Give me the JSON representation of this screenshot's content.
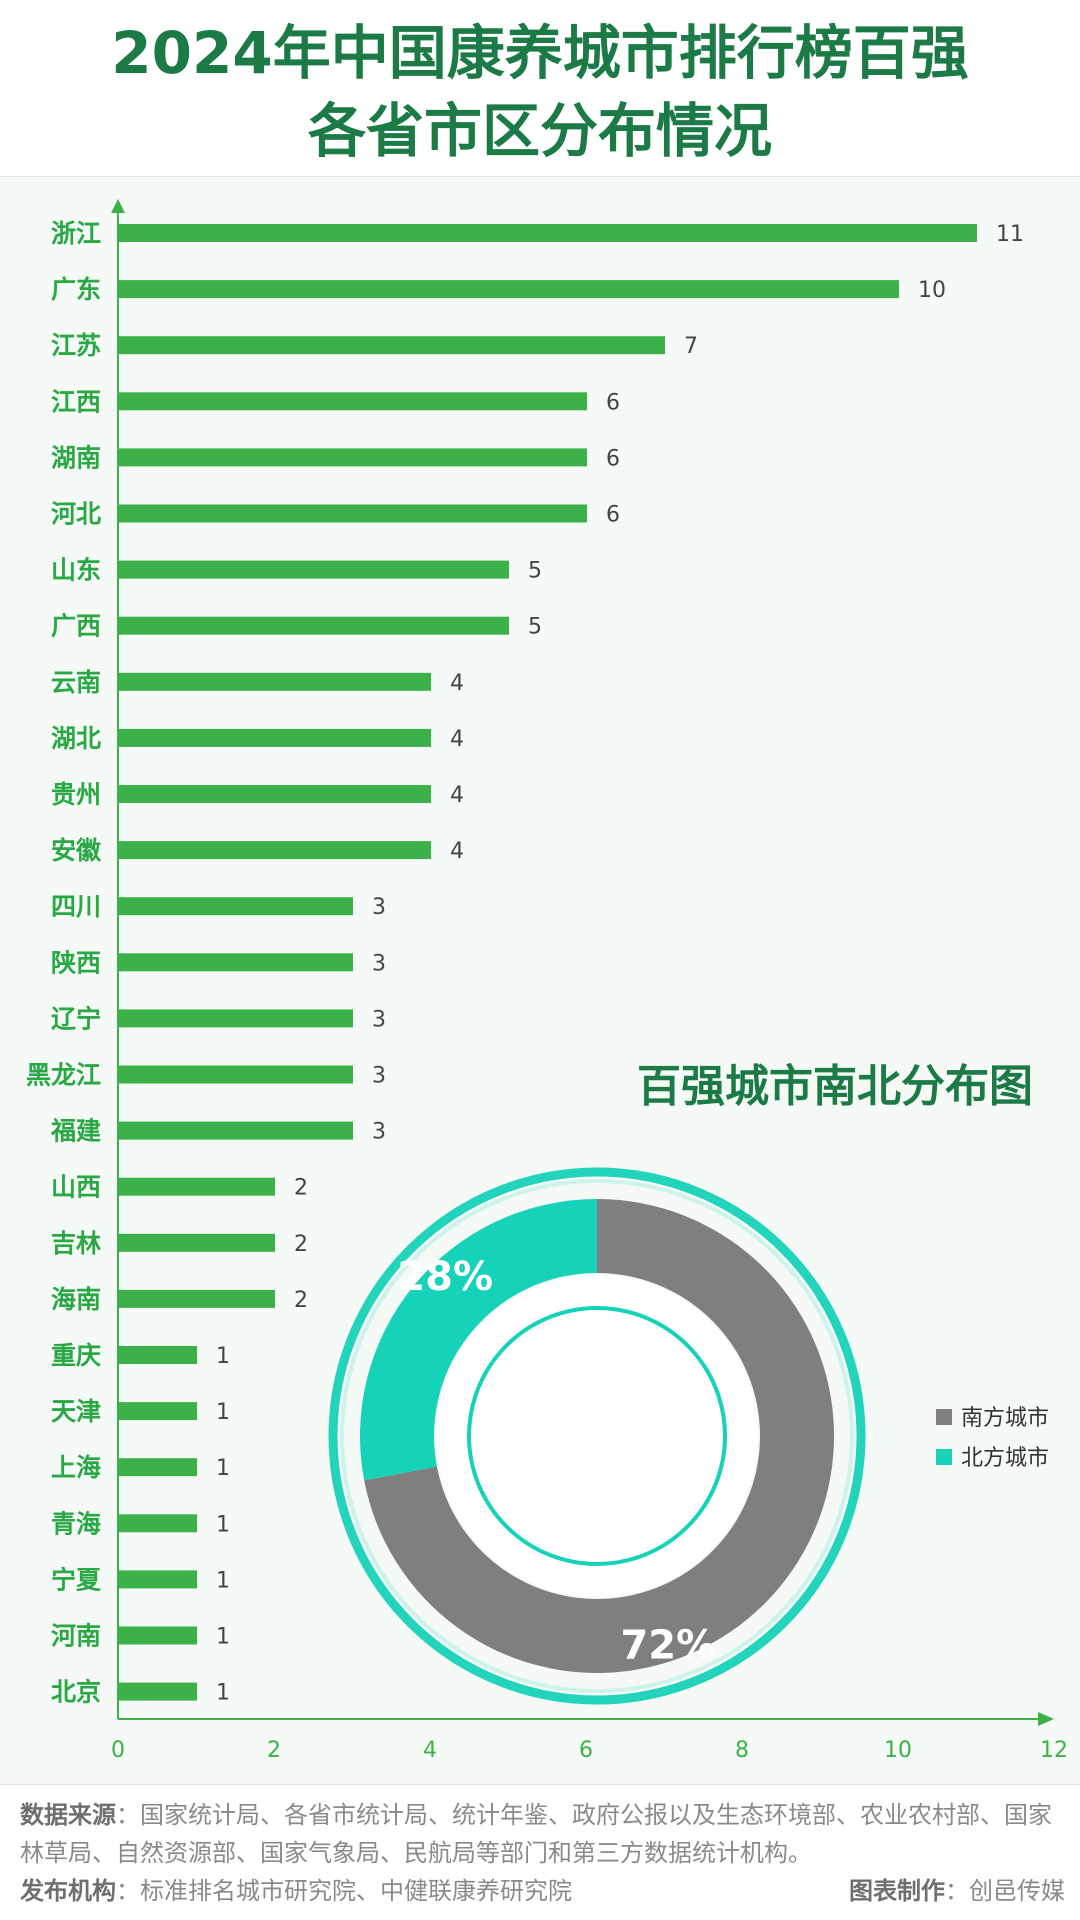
{
  "title": {
    "line1": "2024年中国康养城市排行榜百强",
    "line2": "各省市区分布情况"
  },
  "colors": {
    "bar": "#3cb14a",
    "axis": "#3cb14a",
    "category_label": "#2aa845",
    "title": "#1c7a46",
    "south": "#7f7f7f",
    "north": "#16d2b8"
  },
  "chart_data": [
    {
      "type": "bar",
      "orientation": "horizontal",
      "categories": [
        "浙江",
        "广东",
        "江苏",
        "江西",
        "湖南",
        "河北",
        "山东",
        "广西",
        "云南",
        "湖北",
        "贵州",
        "安徽",
        "四川",
        "陕西",
        "辽宁",
        "黑龙江",
        "福建",
        "山西",
        "吉林",
        "海南",
        "重庆",
        "天津",
        "上海",
        "青海",
        "宁夏",
        "河南",
        "北京"
      ],
      "values": [
        11,
        10,
        7,
        6,
        6,
        6,
        5,
        5,
        4,
        4,
        4,
        4,
        3,
        3,
        3,
        3,
        3,
        2,
        2,
        2,
        1,
        1,
        1,
        1,
        1,
        1,
        1
      ],
      "xlim": [
        0,
        12
      ],
      "xticks": [
        0,
        2,
        4,
        6,
        8,
        10,
        12
      ],
      "grid": false
    },
    {
      "type": "pie",
      "variant": "donut",
      "title": "百强城市南北分布图",
      "slices": [
        {
          "label": "南方城市",
          "value": 72,
          "text": "72%",
          "color": "#7f7f7f"
        },
        {
          "label": "北方城市",
          "value": 28,
          "text": "28%",
          "color": "#16d2b8"
        }
      ],
      "legend_position": "right"
    }
  ],
  "footer": {
    "source_label": "数据来源",
    "source_text": "：国家统计局、各省市统计局、统计年鉴、政府公报以及生态环境部、农业农村部、国家林草局、自然资源部、国家气象局、民航局等部门和第三方数据统计机构。",
    "publisher_label": "发布机构",
    "publisher_text": "：标准排名城市研究院、中健联康养研究院",
    "maker_label": "图表制作",
    "maker_text": "：创邑传媒"
  }
}
